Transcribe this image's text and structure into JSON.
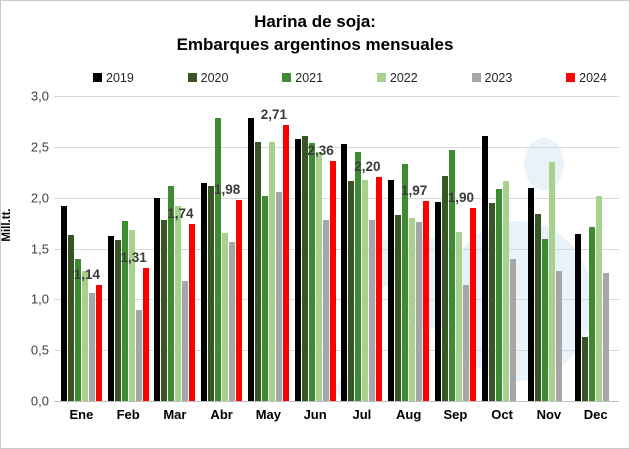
{
  "title": {
    "line1": "Harina de soja:",
    "line2": "Embarques argentinos mensuales"
  },
  "watermark_color": "#BDD7EE",
  "chart_data": {
    "type": "bar",
    "title": "Harina de soja: Embarques argentinos mensuales",
    "xlabel": "",
    "ylabel": "Mill.tt.",
    "ylim": [
      0,
      3
    ],
    "ytick_step": 0.5,
    "ytick_labels": [
      "0,0",
      "0,5",
      "1,0",
      "1,5",
      "2,0",
      "2,5",
      "3,0"
    ],
    "grid": true,
    "legend_position": "top",
    "categories": [
      "Ene",
      "Feb",
      "Mar",
      "Abr",
      "May",
      "Jun",
      "Jul",
      "Aug",
      "Sep",
      "Oct",
      "Nov",
      "Dec"
    ],
    "series": [
      {
        "name": "2019",
        "color": "#000000",
        "values": [
          1.92,
          1.62,
          2.0,
          2.14,
          2.78,
          2.58,
          2.53,
          2.17,
          1.96,
          2.61,
          2.1,
          1.64
        ]
      },
      {
        "name": "2020",
        "color": "#375623",
        "values": [
          1.63,
          1.58,
          1.78,
          2.11,
          2.55,
          2.61,
          2.16,
          1.83,
          2.21,
          1.95,
          1.84,
          0.63
        ]
      },
      {
        "name": "2021",
        "color": "#3E8C31",
        "values": [
          1.4,
          1.77,
          2.11,
          2.78,
          2.02,
          2.54,
          2.45,
          2.33,
          2.47,
          2.09,
          1.59,
          1.71
        ]
      },
      {
        "name": "2022",
        "color": "#A9D18E",
        "values": [
          1.28,
          1.68,
          1.92,
          1.65,
          2.55,
          2.45,
          2.17,
          1.8,
          1.66,
          2.16,
          2.35,
          2.02
        ]
      },
      {
        "name": "2023",
        "color": "#A6A6A6",
        "values": [
          1.06,
          0.9,
          1.18,
          1.56,
          2.06,
          1.78,
          1.78,
          1.76,
          1.14,
          1.4,
          1.28,
          1.26
        ]
      },
      {
        "name": "2024",
        "color": "#FF0000",
        "values": [
          1.14,
          1.31,
          1.74,
          1.98,
          2.71,
          2.36,
          2.2,
          1.97,
          1.9,
          null,
          null,
          null
        ]
      }
    ],
    "data_labels": {
      "series": "2024",
      "values": [
        "1,14",
        "1,31",
        "1,74",
        "1,98",
        "2,71",
        "2,36",
        "2,20",
        "1,97",
        "1,90",
        null,
        null,
        null
      ]
    }
  }
}
